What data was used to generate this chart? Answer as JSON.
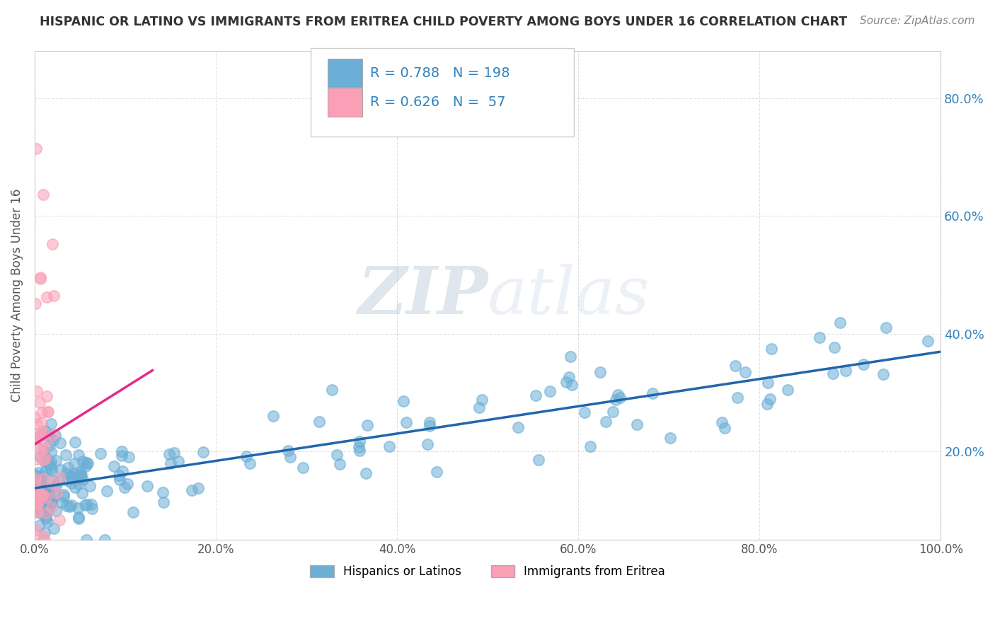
{
  "title": "HISPANIC OR LATINO VS IMMIGRANTS FROM ERITREA CHILD POVERTY AMONG BOYS UNDER 16 CORRELATION CHART",
  "source": "Source: ZipAtlas.com",
  "ylabel": "Child Poverty Among Boys Under 16",
  "blue_R": 0.788,
  "blue_N": 198,
  "pink_R": 0.626,
  "pink_N": 57,
  "blue_color": "#6baed6",
  "pink_color": "#fa9fb5",
  "blue_line_color": "#2166ac",
  "pink_line_color": "#e7298a",
  "watermark_zip": "#b0c4de",
  "watermark_atlas": "#c8d8e8",
  "legend_label_blue": "Hispanics or Latinos",
  "legend_label_pink": "Immigrants from Eritrea",
  "title_color": "#333333",
  "stat_color": "#3182bd",
  "background_color": "#ffffff",
  "grid_color": "#cccccc",
  "tick_color": "#555555",
  "x_tick_labels": [
    "0.0%",
    "20.0%",
    "40.0%",
    "60.0%",
    "80.0%",
    "100.0%"
  ],
  "y_tick_labels": [
    "20.0%",
    "40.0%",
    "60.0%",
    "80.0%"
  ],
  "xlim": [
    0,
    1.0
  ],
  "ylim": [
    0.05,
    0.88
  ]
}
